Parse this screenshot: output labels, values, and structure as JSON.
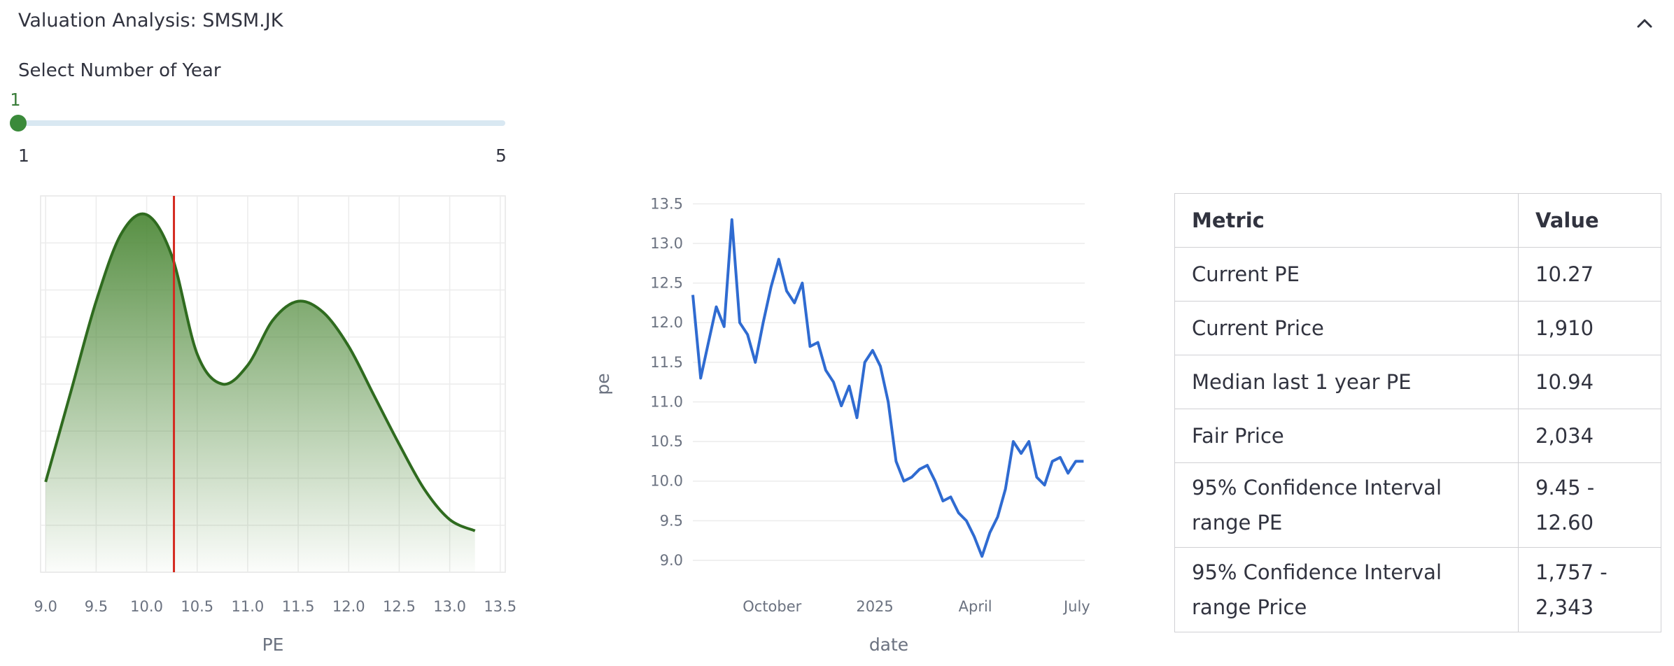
{
  "expander": {
    "title": "Valuation Analysis: SMSM.JK"
  },
  "slider": {
    "label": "Select Number of Year",
    "value": "1",
    "min": "1",
    "max": "5",
    "fill_fraction": 0
  },
  "colors": {
    "density_line": "#2f6b1f",
    "density_fill": "#4f8a3a",
    "current_marker": "#d42a20",
    "pe_line": "#2f6bd1",
    "slider_thumb": "#3a8a3a",
    "slider_value": "#3a7d3a"
  },
  "chart_data": [
    {
      "type": "area",
      "title": "",
      "xlabel": "PE",
      "ylabel": "",
      "xlim": [
        8.95,
        13.55
      ],
      "ylim": [
        0,
        1
      ],
      "grid": true,
      "x_ticks": [
        "9.0",
        "9.5",
        "10.0",
        "10.5",
        "11.0",
        "11.5",
        "12.0",
        "12.5",
        "13.0",
        "13.5"
      ],
      "x": [
        9.0,
        9.25,
        9.5,
        9.75,
        10.0,
        10.25,
        10.5,
        10.75,
        11.0,
        11.25,
        11.5,
        11.75,
        12.0,
        12.25,
        12.5,
        12.75,
        13.0,
        13.25
      ],
      "values": [
        0.24,
        0.48,
        0.72,
        0.9,
        0.95,
        0.84,
        0.58,
        0.5,
        0.55,
        0.67,
        0.72,
        0.69,
        0.6,
        0.47,
        0.34,
        0.22,
        0.14,
        0.11
      ],
      "vertical_marker": 10.27
    },
    {
      "type": "line",
      "title": "",
      "xlabel": "date",
      "ylabel": "pe",
      "ylim": [
        8.85,
        13.6
      ],
      "grid": true,
      "x_ticks": [
        "October",
        "2025",
        "April",
        "July"
      ],
      "y_ticks": [
        "9.0",
        "9.5",
        "10.0",
        "10.5",
        "11.0",
        "11.5",
        "12.0",
        "12.5",
        "13.0",
        "13.5"
      ],
      "x": [
        "2024-07-22",
        "2024-07-29",
        "2024-08-05",
        "2024-08-12",
        "2024-08-19",
        "2024-08-26",
        "2024-09-02",
        "2024-09-09",
        "2024-09-16",
        "2024-09-23",
        "2024-09-30",
        "2024-10-07",
        "2024-10-14",
        "2024-10-21",
        "2024-10-28",
        "2024-11-04",
        "2024-11-11",
        "2024-11-18",
        "2024-11-25",
        "2024-12-02",
        "2024-12-09",
        "2024-12-16",
        "2024-12-23",
        "2024-12-30",
        "2025-01-06",
        "2025-01-13",
        "2025-01-20",
        "2025-01-27",
        "2025-02-03",
        "2025-02-10",
        "2025-02-17",
        "2025-02-24",
        "2025-03-03",
        "2025-03-10",
        "2025-03-17",
        "2025-03-24",
        "2025-03-31",
        "2025-04-07",
        "2025-04-14",
        "2025-04-21",
        "2025-04-28",
        "2025-05-05",
        "2025-05-12",
        "2025-05-19",
        "2025-05-26",
        "2025-06-02",
        "2025-06-09",
        "2025-06-16",
        "2025-06-23",
        "2025-06-30",
        "2025-07-07"
      ],
      "values": [
        12.35,
        11.3,
        11.75,
        12.2,
        11.95,
        13.3,
        12.0,
        11.85,
        11.5,
        12.0,
        12.45,
        12.8,
        12.4,
        12.25,
        12.5,
        11.7,
        11.75,
        11.4,
        11.25,
        10.95,
        11.2,
        10.8,
        11.5,
        11.65,
        11.45,
        11.0,
        10.25,
        10.0,
        10.05,
        10.15,
        10.2,
        10.0,
        9.75,
        9.8,
        9.6,
        9.5,
        9.3,
        9.05,
        9.35,
        9.55,
        9.9,
        10.5,
        10.35,
        10.5,
        10.05,
        9.95,
        10.25,
        10.3,
        10.1,
        10.25,
        10.25
      ]
    }
  ],
  "table": {
    "headers": [
      "Metric",
      "Value"
    ],
    "rows": [
      [
        "Current PE",
        "10.27"
      ],
      [
        "Current Price",
        "1,910"
      ],
      [
        "Median last 1 year PE",
        "10.94"
      ],
      [
        "Fair Price",
        "2,034"
      ],
      [
        "95% Confidence Interval range PE",
        "9.45 - 12.60"
      ],
      [
        "95% Confidence Interval range Price",
        "1,757 - 2,343"
      ]
    ]
  }
}
